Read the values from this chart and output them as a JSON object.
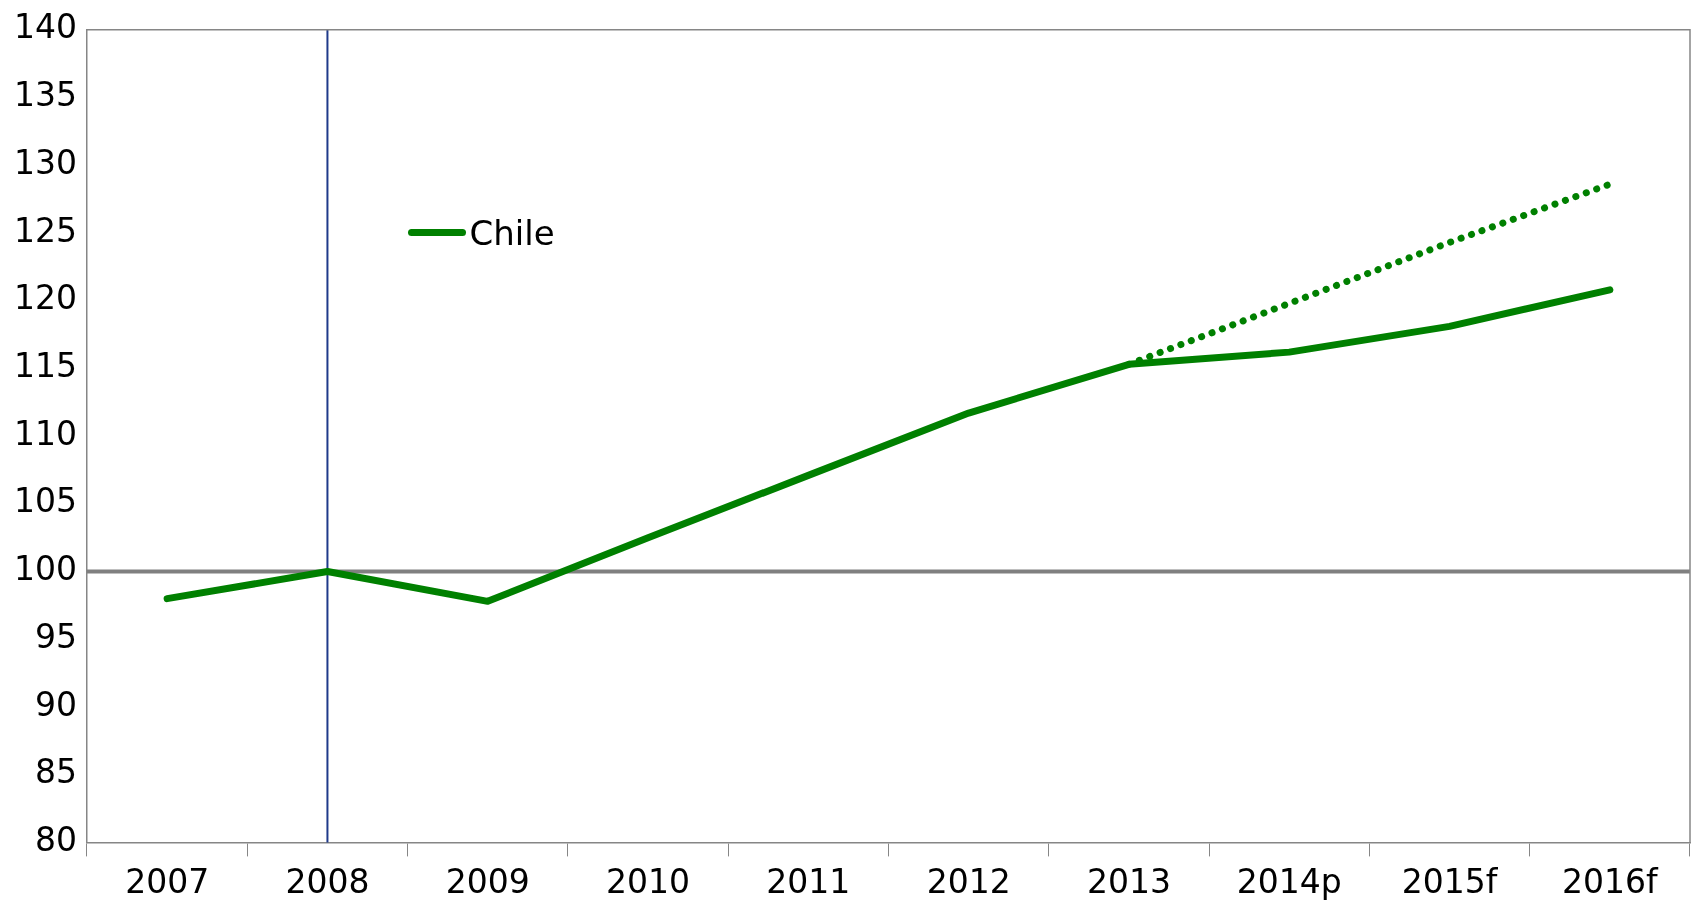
{
  "chart_data": {
    "type": "line",
    "categories": [
      "2007",
      "2008",
      "2009",
      "2010",
      "2011",
      "2012",
      "2013",
      "2014p",
      "2015f",
      "2016f"
    ],
    "series": [
      {
        "name": "Chile",
        "color": "#008000",
        "line_style": "solid",
        "values": [
          98,
          100,
          97.8,
          102.5,
          107.1,
          111.7,
          115.3,
          116.2,
          118.1,
          120.8
        ]
      },
      {
        "color": "#008000",
        "line_style": "dotted",
        "values": [
          null,
          null,
          null,
          null,
          null,
          null,
          115.3,
          119.8,
          124.3,
          128.6
        ]
      }
    ],
    "ylim": [
      80,
      140
    ],
    "yticks": [
      80,
      85,
      90,
      95,
      100,
      105,
      110,
      115,
      120,
      125,
      130,
      135,
      140
    ],
    "ref_lines": [
      {
        "axis": "y",
        "value": 100,
        "color": "#808080"
      },
      {
        "axis": "x",
        "value": "2008",
        "color": "#1f3a8a"
      }
    ],
    "marker": "none",
    "legend": "top left"
  }
}
